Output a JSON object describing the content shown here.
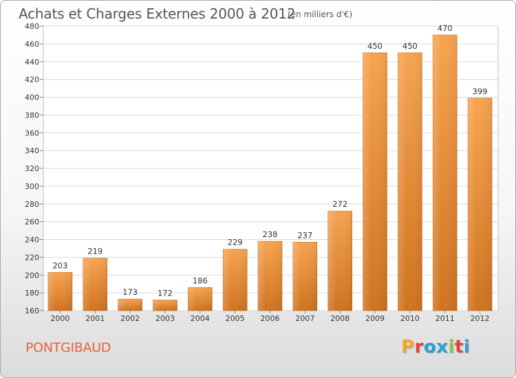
{
  "header": {
    "title": "Achats et Charges Externes 2000 à 2012",
    "subtitle": "(en milliers d'€)"
  },
  "footer": {
    "commune": "PONTGIBAUD",
    "brand": "Proxiti",
    "brand_colors": [
      "#f5a623",
      "#e8413a",
      "#2a9fd6",
      "#2a9fd6",
      "#8bc34a",
      "#e8413a",
      "#2a9fd6"
    ]
  },
  "chart_data": {
    "type": "bar",
    "title": "Achats et Charges Externes 2000 à 2012",
    "subtitle": "(en milliers d'€)",
    "categories": [
      "2000",
      "2001",
      "2002",
      "2003",
      "2004",
      "2005",
      "2006",
      "2007",
      "2008",
      "2009",
      "2010",
      "2011",
      "2012"
    ],
    "values": [
      203,
      219,
      173,
      172,
      186,
      229,
      238,
      237,
      272,
      450,
      450,
      470,
      399
    ],
    "ylim": [
      160,
      480
    ],
    "yticks": [
      160,
      180,
      200,
      220,
      240,
      260,
      280,
      300,
      320,
      340,
      360,
      380,
      400,
      420,
      440,
      460,
      480
    ],
    "xlabel": "",
    "ylabel": "",
    "grid": true,
    "bar_color_top": "#f7a44f",
    "bar_color_bottom": "#cf7320",
    "data_labels": true
  }
}
